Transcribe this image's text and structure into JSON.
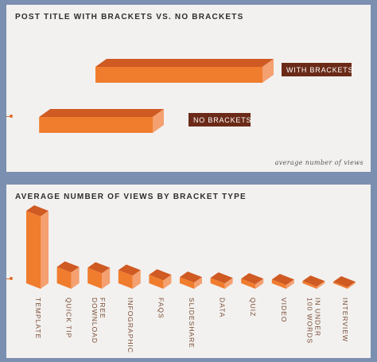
{
  "charts": {
    "comparison": {
      "title": "POST TITLE WITH BRACKETS VS. NO BRACKETS",
      "note": "average number of views"
    },
    "by_type": {
      "title": "AVERAGE NUMBER OF VIEWS BY BRACKET TYPE"
    }
  },
  "colors": {
    "face": "#f07c2e",
    "top": "#cf5a22",
    "side": "#f4a070",
    "label_bg": "#6a2a17",
    "tick_text": "#7a4a34"
  },
  "chart_data": [
    {
      "type": "bar",
      "orientation": "horizontal",
      "title": "POST TITLE WITH BRACKETS VS. NO BRACKETS",
      "categories": [
        "WITH BRACKETS",
        "NO BRACKETS"
      ],
      "values": [
        100,
        68
      ],
      "xlabel": "average number of views",
      "ylabel": "",
      "xlim": [
        0,
        100
      ],
      "grid": false
    },
    {
      "type": "bar",
      "orientation": "vertical",
      "title": "AVERAGE NUMBER OF VIEWS BY BRACKET TYPE",
      "categories": [
        "TEMPLATE",
        "QUICK TIP",
        "FREE DOWNLOAD",
        "INFOGRAPHIC",
        "FAQS",
        "SLIDESHARE",
        "DATA",
        "QUIZ",
        "VIDEO",
        "IN UNDER 100 WORDS",
        "INTERVIEW"
      ],
      "category_lines": [
        [
          "TEMPLATE"
        ],
        [
          "QUICK TIP"
        ],
        [
          "FREE",
          "DOWNLOAD"
        ],
        [
          "INFOGRAPHIC"
        ],
        [
          "FAQS"
        ],
        [
          "SLIDESHARE"
        ],
        [
          "DATA"
        ],
        [
          "QUIZ"
        ],
        [
          "VIDEO"
        ],
        [
          "IN UNDER",
          "100 WORDS"
        ],
        [
          "INTERVIEW"
        ]
      ],
      "values": [
        100,
        28,
        27,
        24,
        18,
        15,
        14,
        13,
        12,
        10,
        9
      ],
      "xlabel": "",
      "ylabel": "",
      "ylim": [
        0,
        100
      ],
      "grid": false
    }
  ]
}
